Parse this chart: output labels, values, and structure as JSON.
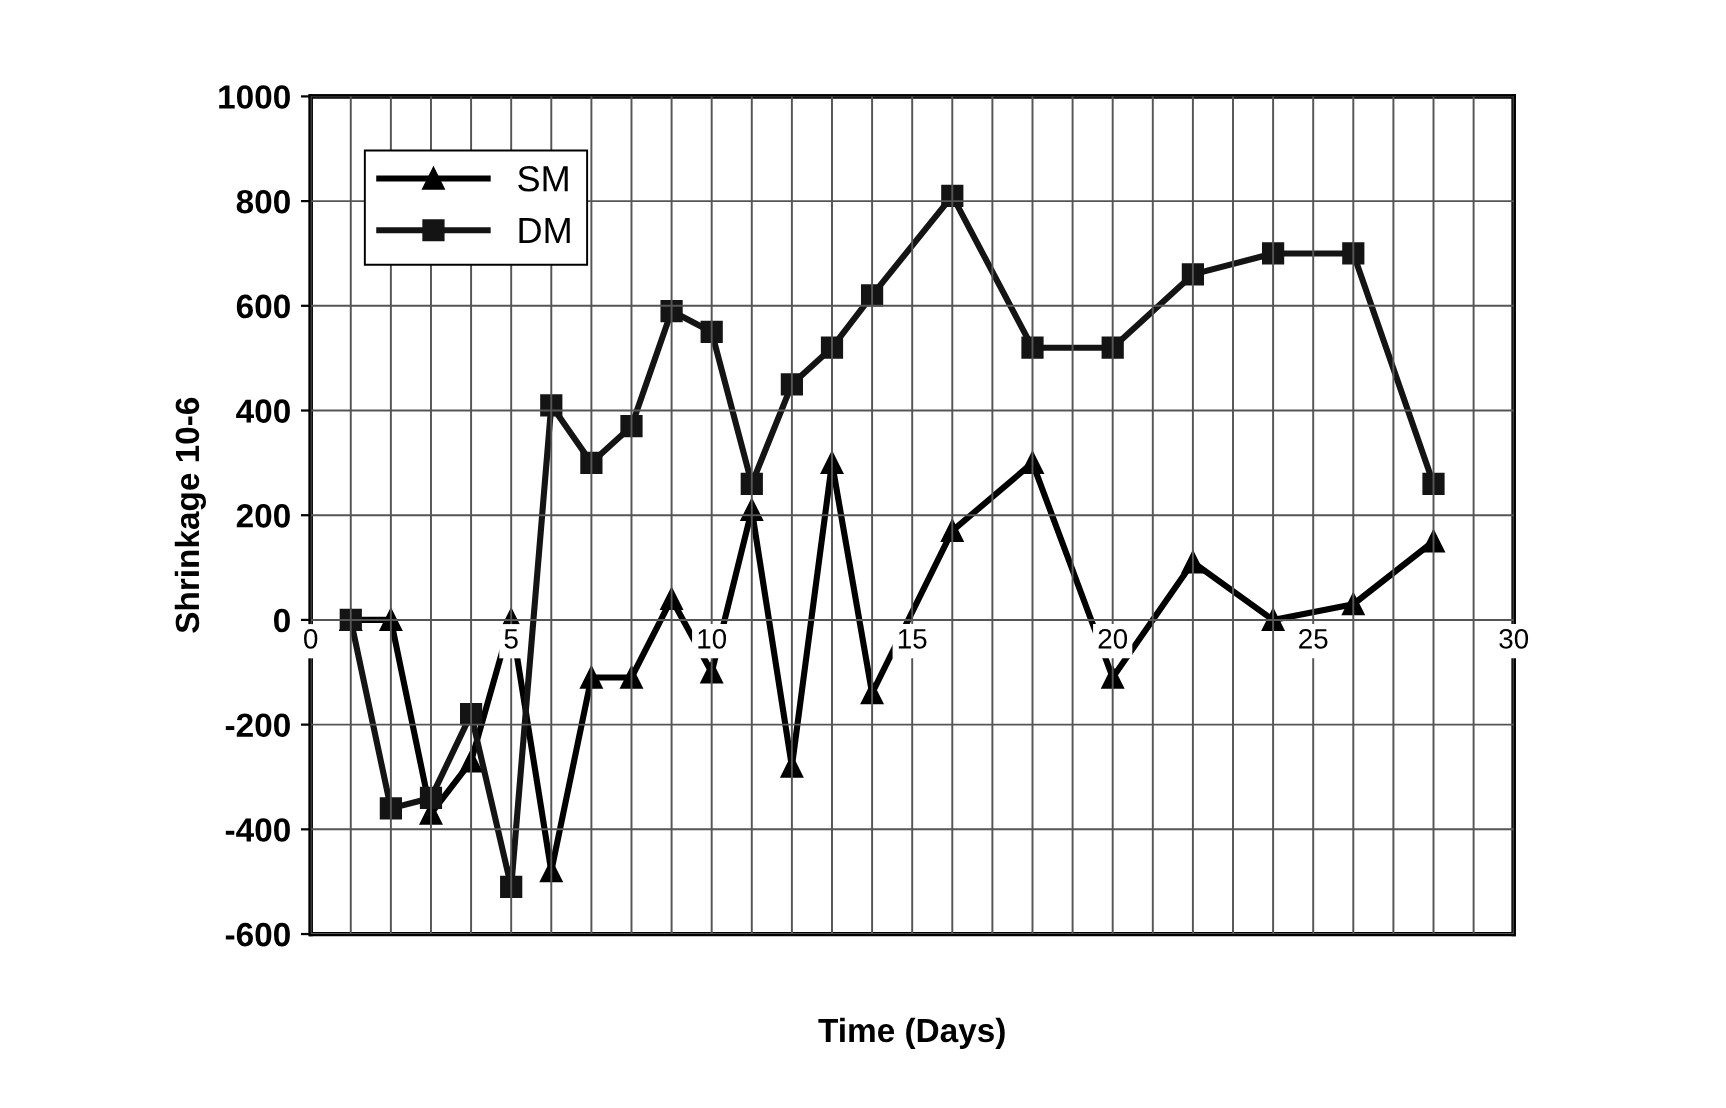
{
  "chart_data": {
    "type": "line",
    "xlabel": "Time (Days)",
    "ylabel": "Shrinkage 10-6",
    "x": [
      1,
      2,
      3,
      4,
      5,
      6,
      7,
      8,
      9,
      10,
      11,
      12,
      13,
      14,
      16,
      18,
      20,
      22,
      24,
      26,
      28
    ],
    "series": [
      {
        "name": "SM",
        "color": "#000000",
        "marker": "triangle",
        "values": [
          0,
          0,
          -370,
          -270,
          0,
          -480,
          -110,
          -110,
          40,
          -100,
          210,
          -280,
          300,
          -140,
          170,
          300,
          -110,
          110,
          0,
          30,
          150
        ]
      },
      {
        "name": "DM",
        "color": "#141414",
        "marker": "square",
        "values": [
          0,
          -360,
          -340,
          -180,
          -510,
          410,
          300,
          370,
          590,
          550,
          260,
          450,
          520,
          620,
          810,
          520,
          520,
          660,
          700,
          700,
          260
        ]
      }
    ],
    "xlim": [
      0,
      30
    ],
    "xticks": [
      0,
      5,
      10,
      15,
      20,
      25,
      30
    ],
    "ylim": [
      -600,
      1000
    ],
    "yticks": [
      -600,
      -400,
      -200,
      0,
      200,
      400,
      600,
      800,
      1000
    ],
    "grid": true,
    "legend": "top left",
    "line_style": "solid"
  }
}
